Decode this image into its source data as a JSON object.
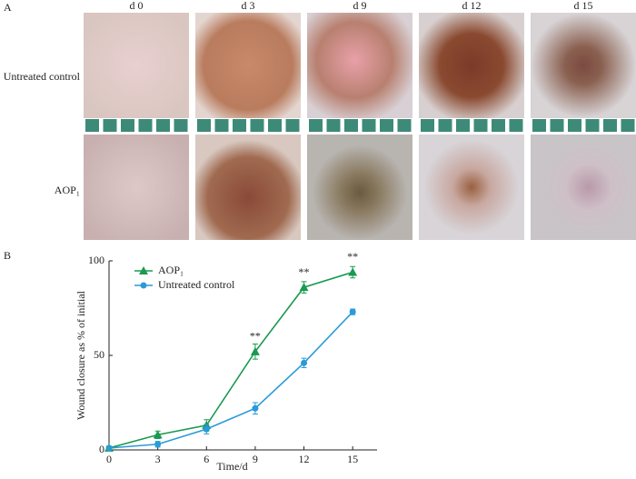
{
  "panel_a": {
    "label": "A",
    "columns": [
      "d 0",
      "d 3",
      "d 9",
      "d 12",
      "d 15"
    ],
    "rows": [
      "Untreated control",
      "AOP₁"
    ]
  },
  "chart_data": {
    "type": "line",
    "panel_label": "B",
    "x": [
      0,
      3,
      6,
      9,
      12,
      15
    ],
    "series": [
      {
        "name": "AOP₁",
        "color": "#1a9a50",
        "marker": "triangle",
        "values": [
          1,
          8,
          13,
          52,
          86,
          94
        ],
        "errors": [
          1,
          2,
          3,
          4,
          3,
          3
        ]
      },
      {
        "name": "Untreated control",
        "color": "#2a9ad8",
        "marker": "circle",
        "values": [
          1,
          3,
          11,
          22,
          46,
          73
        ],
        "errors": [
          1,
          1.5,
          2.5,
          3,
          2.5,
          1.5
        ]
      }
    ],
    "annotations": [
      {
        "x": 9,
        "y": 52,
        "text": "**"
      },
      {
        "x": 12,
        "y": 86,
        "text": "**"
      },
      {
        "x": 15,
        "y": 94,
        "text": "**"
      }
    ],
    "xlim": [
      0,
      16.5
    ],
    "xticks": [
      0,
      3,
      6,
      9,
      12,
      15
    ],
    "ylim": [
      0,
      100
    ],
    "yticks": [
      0,
      50,
      100
    ],
    "xlabel": "Time/d",
    "ylabel": "Wound closure as % of initial",
    "legend": "upper left",
    "grid": false
  }
}
